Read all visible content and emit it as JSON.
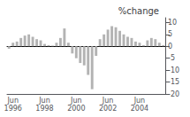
{
  "chart_data": {
    "type": "bar",
    "title": "%change",
    "categories": [
      null,
      "Jun\n1996",
      null,
      null,
      null,
      null,
      null,
      null,
      null,
      "Jun\n1998",
      null,
      null,
      null,
      null,
      null,
      null,
      null,
      "Jun\n2000",
      null,
      null,
      null,
      null,
      null,
      null,
      null,
      "Jun\n2002",
      null,
      null,
      null,
      null,
      null,
      null,
      null,
      "Jun\n2004",
      null,
      null,
      null,
      null,
      null,
      null
    ],
    "values": [
      -1.0,
      1.5,
      2.0,
      3.5,
      4.5,
      5.0,
      4.0,
      3.0,
      2.5,
      1.0,
      0.5,
      0.3,
      1.5,
      3.5,
      7.5,
      1.5,
      -3.0,
      -5.0,
      -7.0,
      -8.0,
      -12.0,
      -18.0,
      -4.0,
      3.0,
      5.0,
      7.0,
      8.5,
      8.0,
      6.5,
      5.0,
      4.0,
      3.5,
      2.0,
      1.5,
      0.5,
      2.5,
      3.5,
      3.0,
      1.5,
      0.5
    ],
    "color": "#b3b3b3",
    "ylim": [
      -20,
      12
    ],
    "yticks": [
      10,
      5,
      0,
      -5,
      -10,
      -15,
      -20
    ],
    "grid": false
  }
}
